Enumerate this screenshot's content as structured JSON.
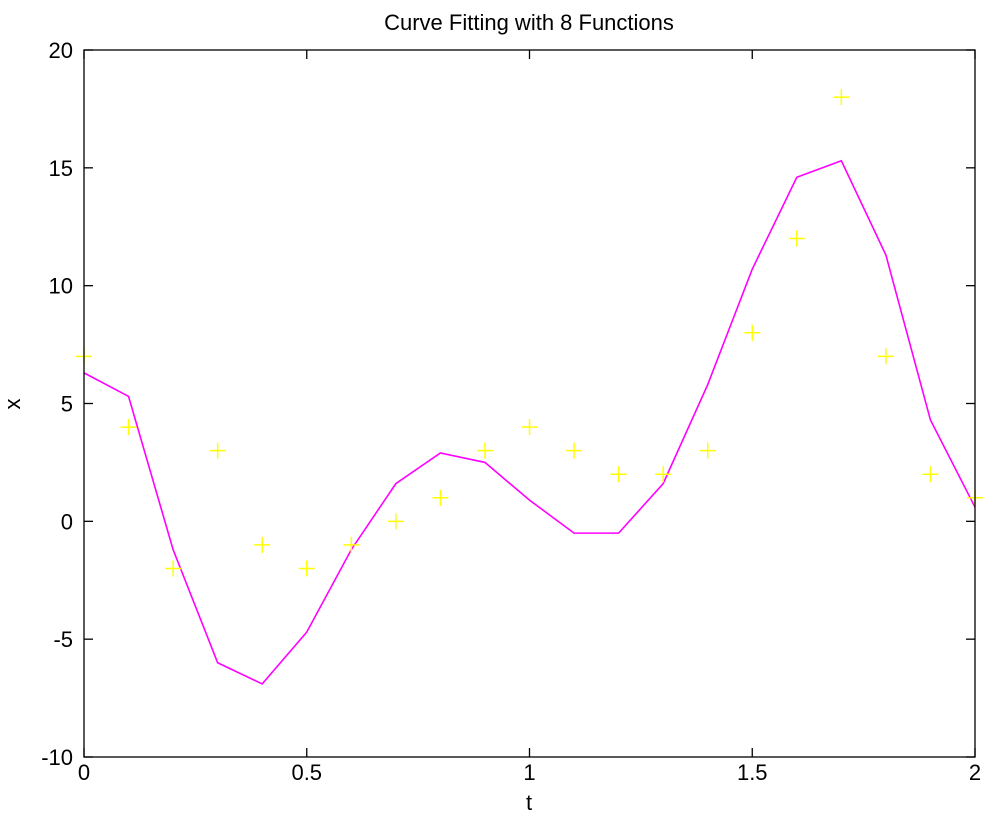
{
  "chart_data": {
    "type": "line",
    "title": "Curve Fitting with 8 Functions",
    "xlabel": "t",
    "ylabel": "x",
    "xlim": [
      0,
      2
    ],
    "ylim": [
      -10,
      20
    ],
    "xticks": [
      0,
      0.5,
      1,
      1.5,
      2
    ],
    "xtick_labels": [
      "0",
      "0.5",
      "1",
      "1.5",
      "2"
    ],
    "yticks": [
      -10,
      -5,
      0,
      5,
      10,
      15,
      20
    ],
    "ytick_labels": [
      "-10",
      "-5",
      "0",
      "5",
      "10",
      "15",
      "20"
    ],
    "grid": false,
    "series": [
      {
        "kind": "scatter",
        "marker": "plus",
        "color": "#ffff00",
        "x": [
          0,
          0.1,
          0.2,
          0.3,
          0.4,
          0.5,
          0.6,
          0.7,
          0.8,
          0.9,
          1.0,
          1.1,
          1.2,
          1.3,
          1.4,
          1.5,
          1.6,
          1.7,
          1.8,
          1.9,
          2.0
        ],
        "y": [
          7,
          4,
          -2,
          3,
          -1,
          -2,
          -1,
          0,
          1,
          3,
          4,
          3,
          2,
          2,
          3,
          8,
          12,
          18,
          7,
          2,
          1
        ]
      },
      {
        "kind": "line",
        "color": "#ff00ff",
        "x": [
          0,
          0.1,
          0.2,
          0.3,
          0.4,
          0.5,
          0.6,
          0.7,
          0.8,
          0.9,
          1.0,
          1.1,
          1.2,
          1.3,
          1.4,
          1.5,
          1.6,
          1.7,
          1.8,
          1.9,
          2.0
        ],
        "y": [
          6.3,
          5.3,
          -1.2,
          -6.0,
          -6.9,
          -4.7,
          -1.2,
          1.6,
          2.9,
          2.5,
          0.9,
          -0.5,
          -0.5,
          1.6,
          5.8,
          10.7,
          14.6,
          15.3,
          11.3,
          4.3,
          0.6
        ]
      }
    ]
  }
}
